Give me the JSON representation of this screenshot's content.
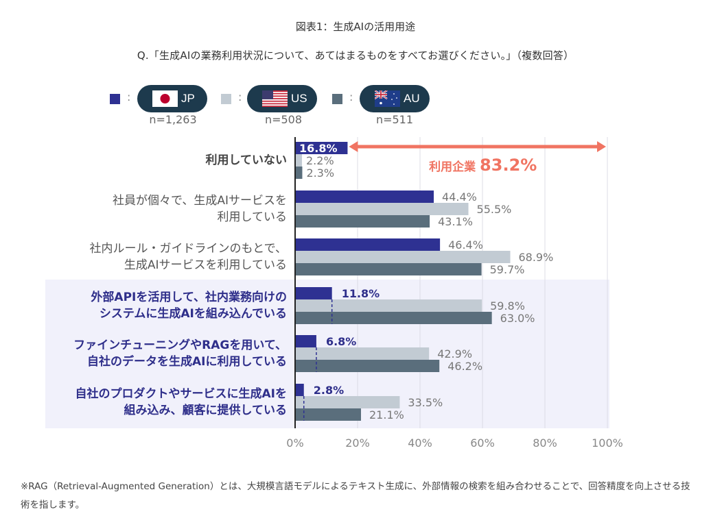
{
  "title": "図表1：生成AIの活用用途",
  "question": "Q.「生成AIの業務利用状況について、あてはまるものをすべてお選びください。」（複数回答）",
  "legend": [
    {
      "code": "JP",
      "n": "n=1,263",
      "color": "#2e3192",
      "flag": "japan-flag-icon"
    },
    {
      "code": "US",
      "n": "n=508",
      "color": "#c2cbd3",
      "flag": "us-flag-icon"
    },
    {
      "code": "AU",
      "n": "n=511",
      "color": "#5a6e7c",
      "flag": "australia-flag-icon"
    }
  ],
  "legend_colon": ":",
  "annotation": {
    "label": "利用企業",
    "value": "83.2%",
    "color": "#f07462"
  },
  "highlight_color": "#2e2e8a",
  "footnote": "※RAG（Retrieval-Augmented Generation）とは、大規模言語モデルによるテキスト生成に、外部情報の検索を組み合わせることで、回答精度を向上させる技術を指します。",
  "chart_data": {
    "type": "bar",
    "orientation": "horizontal",
    "title": "図表1：生成AIの活用用途",
    "xlabel": "",
    "ylabel": "",
    "xlim": [
      0,
      100
    ],
    "xticks": [
      "0%",
      "20%",
      "40%",
      "60%",
      "80%",
      "100%"
    ],
    "grid": true,
    "legend_position": "top",
    "categories": [
      {
        "lines": [
          "利用していない"
        ],
        "style": "bold"
      },
      {
        "lines": [
          "社員が個々で、生成AIサービスを",
          "利用している"
        ],
        "style": "normal"
      },
      {
        "lines": [
          "社内ルール・ガイドラインのもとで、",
          "生成AIサービスを利用している"
        ],
        "style": "normal"
      },
      {
        "lines": [
          "外部APIを活用して、社内業務向けの",
          "システムに生成AIを組み込んでいる"
        ],
        "style": "highlight"
      },
      {
        "lines": [
          "ファインチューニングやRAGを用いて、",
          "自社のデータを生成AIに利用している"
        ],
        "style": "highlight"
      },
      {
        "lines": [
          "自社のプロダクトやサービスに生成AIを",
          "組み込み、顧客に提供している"
        ],
        "style": "highlight"
      }
    ],
    "series": [
      {
        "name": "JP",
        "n": 1263,
        "values": [
          16.8,
          44.4,
          46.4,
          11.8,
          6.8,
          2.8
        ],
        "labels": [
          "16.8%",
          "44.4%",
          "46.4%",
          "11.8%",
          "6.8%",
          "2.8%"
        ]
      },
      {
        "name": "US",
        "n": 508,
        "values": [
          2.2,
          55.5,
          68.9,
          59.8,
          42.9,
          33.5
        ],
        "labels": [
          "2.2%",
          "55.5%",
          "68.9%",
          "59.8%",
          "42.9%",
          "33.5%"
        ]
      },
      {
        "name": "AU",
        "n": 511,
        "values": [
          2.3,
          43.1,
          59.7,
          63.0,
          46.2,
          21.1
        ],
        "labels": [
          "2.3%",
          "43.1%",
          "59.7%",
          "63.0%",
          "46.2%",
          "21.1%"
        ]
      }
    ],
    "annotations": [
      {
        "text": "利用企業 83.2%",
        "type": "double-arrow",
        "from": 16.8,
        "to": 100
      }
    ]
  }
}
